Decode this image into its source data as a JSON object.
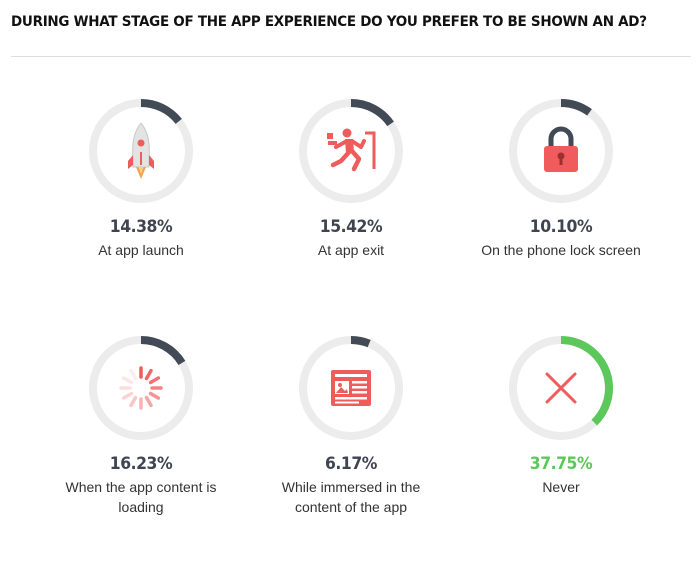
{
  "chart_data": {
    "type": "donut",
    "title": "DURING WHAT STAGE OF THE APP EXPERIENCE DO YOU PREFER TO BE SHOWN AN AD?",
    "unit": "%",
    "track_color": "#ececec",
    "arc_color": "#414a55",
    "highlight_color": "#5cc75a",
    "icon_color": "#f05b5b",
    "items": [
      {
        "value": 14.38,
        "value_label": "14.38%",
        "label": "At app launch",
        "icon": "rocket-icon",
        "highlight": false
      },
      {
        "value": 15.42,
        "value_label": "15.42%",
        "label": "At app exit",
        "icon": "running-man-icon",
        "highlight": false
      },
      {
        "value": 10.1,
        "value_label": "10.10%",
        "label": "On the phone lock screen",
        "icon": "padlock-icon",
        "highlight": false
      },
      {
        "value": 16.23,
        "value_label": "16.23%",
        "label": "When the app content is loading",
        "icon": "loading-spinner-icon",
        "highlight": false
      },
      {
        "value": 6.17,
        "value_label": "6.17%",
        "label": "While immersed in the content of the app",
        "icon": "article-icon",
        "highlight": false
      },
      {
        "value": 37.75,
        "value_label": "37.75%",
        "label": "Never",
        "icon": "x-mark-icon",
        "highlight": true
      }
    ]
  }
}
